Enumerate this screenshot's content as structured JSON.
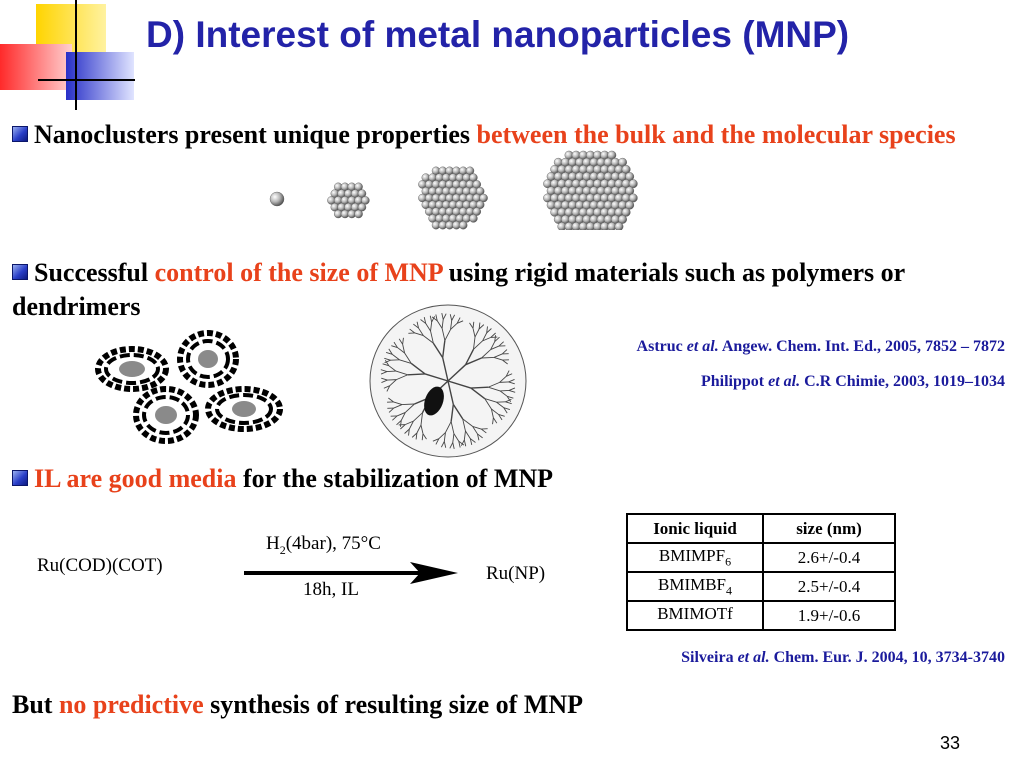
{
  "title": "D) Interest of metal nanoparticles (MNP)",
  "bullet1": {
    "text": "Nanoclusters present unique properties ",
    "highlight": "between the bulk and the molecular species"
  },
  "bullet2": {
    "text1": "Successful ",
    "highlight": "control of the size of MNP",
    "text2": " using rigid materials such as polymers or dendrimers"
  },
  "references_top": [
    {
      "author": "Astruc ",
      "etal": "et al.",
      "citation": " Angew. Chem. Int. Ed., 2005, 7852 – 7872"
    },
    {
      "author": "Philippot ",
      "etal": "et al.",
      "citation": " C.R Chimie, 2003, 1019–1034"
    }
  ],
  "bullet3": {
    "highlight": "IL are good media",
    "text": " for the stabilization of MNP"
  },
  "reaction": {
    "reactant": "Ru(COD)(COT)",
    "condition_above_main": "H",
    "condition_above_sub": "2",
    "condition_above_rest": "(4bar), 75°C",
    "condition_below": "18h, IL",
    "product": "Ru(NP)"
  },
  "table": {
    "headers": [
      "Ionic liquid",
      "size (nm)"
    ],
    "rows": [
      {
        "name": "BMIMPF",
        "sub": "6",
        "size": "2.6+/-0.4"
      },
      {
        "name": "BMIMBF",
        "sub": "4",
        "size": "2.5+/-0.4"
      },
      {
        "name": "BMIMOTf",
        "sub": "",
        "size": "1.9+/-0.6"
      }
    ]
  },
  "reference_bottom": {
    "author": "Silveira ",
    "etal": "et al.",
    "citation": " Chem. Eur. J. 2004, 10, 3734-3740"
  },
  "conclusion": {
    "text1": "But ",
    "highlight": "no predictive",
    "text2": " synthesis of resulting size of MNP"
  },
  "page_number": "33",
  "colors": {
    "title": "#2323a8",
    "highlight": "#e8421b",
    "reference": "#1b1b9c"
  }
}
